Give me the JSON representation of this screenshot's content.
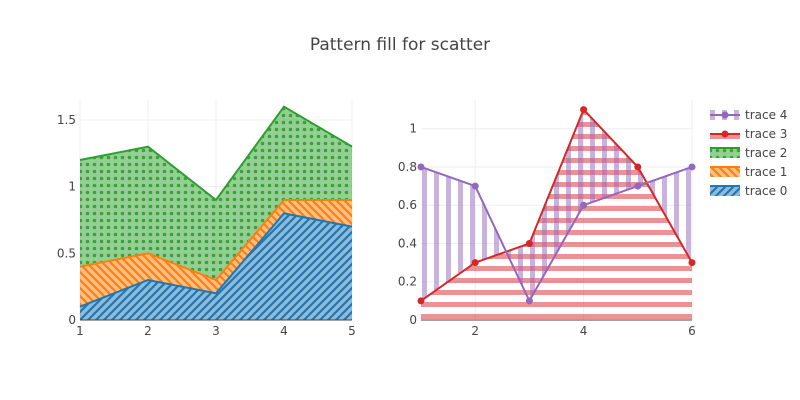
{
  "title": "Pattern fill for scatter",
  "chart_data": [
    {
      "type": "area",
      "stacked": true,
      "x": [
        1,
        2,
        3,
        4,
        5
      ],
      "xlim": [
        1,
        5
      ],
      "ylim": [
        0,
        1.65
      ],
      "xticks": [
        1,
        2,
        3,
        4,
        5
      ],
      "yticks": [
        0,
        0.5,
        1,
        1.5
      ],
      "grid": true,
      "series": [
        {
          "name": "trace 0",
          "values": [
            0.1,
            0.3,
            0.2,
            0.8,
            0.7
          ],
          "color": "#1f77b4",
          "pattern": "diagonal-slash"
        },
        {
          "name": "trace 1",
          "values": [
            0.3,
            0.2,
            0.1,
            0.1,
            0.2
          ],
          "color": "#ff7f0e",
          "pattern": "diagonal-backslash"
        },
        {
          "name": "trace 2",
          "values": [
            0.8,
            0.8,
            0.6,
            0.7,
            0.4
          ],
          "color": "#2ca02c",
          "pattern": "dots"
        }
      ]
    },
    {
      "type": "line",
      "xlim": [
        1,
        6
      ],
      "ylim": [
        0,
        1.15
      ],
      "xticks": [
        2,
        4,
        6
      ],
      "yticks": [
        0,
        0.2,
        0.4,
        0.6,
        0.8,
        1
      ],
      "grid": true,
      "series": [
        {
          "name": "trace 3",
          "x": [
            1,
            2,
            3,
            4,
            5,
            6
          ],
          "values": [
            0.1,
            0.3,
            0.4,
            1.1,
            0.8,
            0.3
          ],
          "color": "#d62728",
          "fill": "tozeroy",
          "pattern": "horizontal-lines"
        },
        {
          "name": "trace 4",
          "x": [
            1,
            2,
            3,
            4,
            5,
            6
          ],
          "values": [
            0.8,
            0.7,
            0.1,
            0.6,
            0.7,
            0.8
          ],
          "color": "#9467bd",
          "fill": "tonexty",
          "pattern": "vertical-lines"
        }
      ]
    }
  ],
  "legend": {
    "placement": "right",
    "items": [
      "trace 4",
      "trace 3",
      "trace 2",
      "trace 1",
      "trace 0"
    ]
  }
}
